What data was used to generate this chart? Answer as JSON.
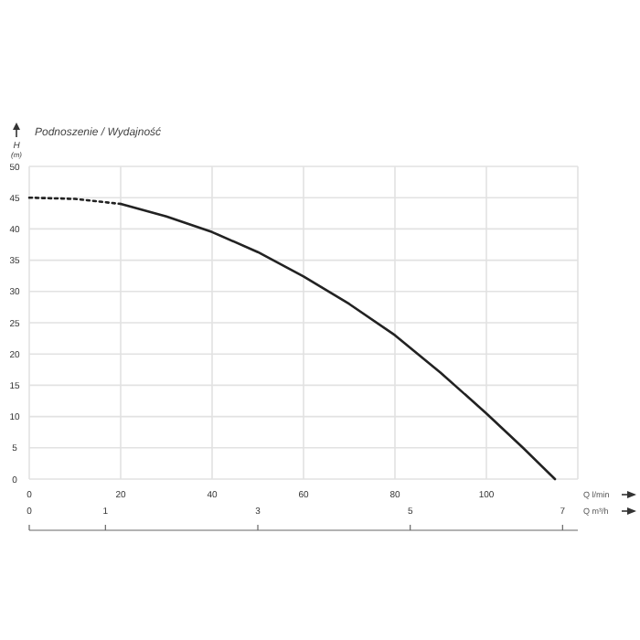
{
  "chart_data": {
    "type": "line",
    "title": "Podnoszenie / Wydajność",
    "ylabel": "H\n(m)",
    "xlabel": "Q l/min",
    "x2label": "Q m³/h",
    "xlim": [
      0,
      120
    ],
    "xticks": [
      0,
      20,
      40,
      60,
      80,
      100
    ],
    "ylim": [
      0,
      50
    ],
    "yticks": [
      0,
      5,
      10,
      15,
      20,
      25,
      30,
      35,
      40,
      45,
      50
    ],
    "x2lim": [
      0,
      7.2
    ],
    "x2ticks": [
      0,
      1,
      3,
      5,
      7
    ],
    "grid": true,
    "series": [
      {
        "color": "#222222",
        "line_style": "dotted",
        "x": [
          0,
          10,
          20
        ],
        "values": [
          45,
          44.8,
          44
        ]
      },
      {
        "color": "#222222",
        "line_style": "solid",
        "x": [
          20,
          30,
          40,
          50,
          60,
          70,
          80,
          90,
          100,
          108,
          115
        ],
        "values": [
          44,
          42,
          39.5,
          36.3,
          32.4,
          28,
          23,
          17,
          10.5,
          5,
          0
        ]
      }
    ]
  }
}
